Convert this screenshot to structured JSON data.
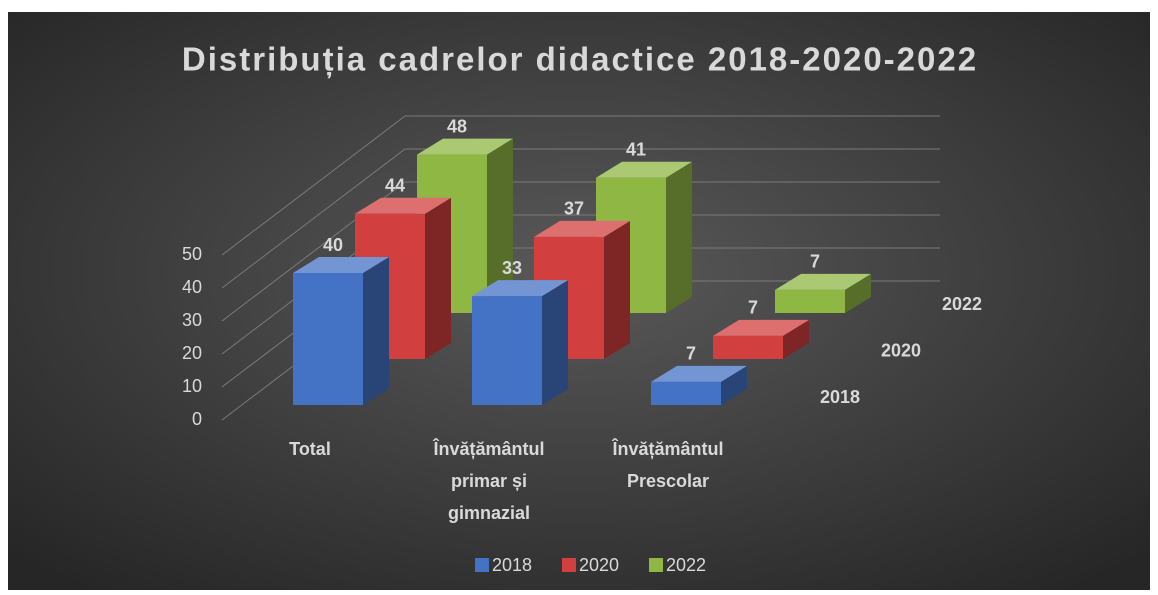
{
  "chart_data": {
    "type": "bar3d",
    "title": "Distribuția cadrelor didactice 2018-2020-2022",
    "categories": [
      "Total",
      "Învățământul primar și gimnazial",
      "Învățământul Prescolar"
    ],
    "series": [
      {
        "name": "2018",
        "color": "#4472c4",
        "values": [
          40,
          33,
          7
        ]
      },
      {
        "name": "2020",
        "color": "#d23f3f",
        "values": [
          44,
          37,
          7
        ]
      },
      {
        "name": "2022",
        "color": "#8fb744",
        "values": [
          48,
          41,
          7
        ]
      }
    ],
    "ylim": [
      0,
      50
    ],
    "yticks": [
      0,
      10,
      20,
      30,
      40,
      50
    ],
    "grid": true,
    "legend": "bottom"
  }
}
